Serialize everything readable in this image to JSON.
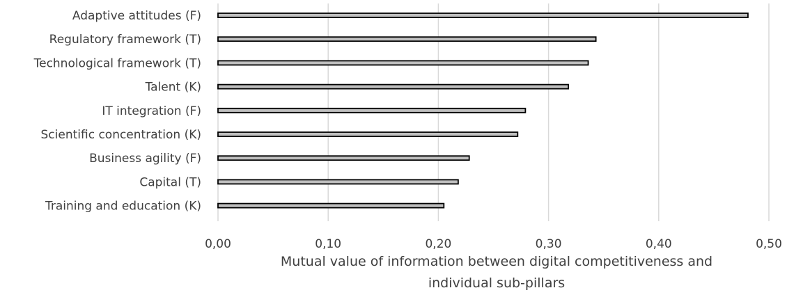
{
  "chart_data": {
    "type": "bar",
    "orientation": "horizontal",
    "categories": [
      "Adaptive attitudes (F)",
      "Regulatory framework (T)",
      "Technological framework (T)",
      "Talent (K)",
      "IT integration (F)",
      "Scientific concentration (K)",
      "Business agility (F)",
      "Capital (T)",
      "Training and education (K)"
    ],
    "values": [
      0.481,
      0.343,
      0.336,
      0.318,
      0.279,
      0.272,
      0.228,
      0.218,
      0.205
    ],
    "xlim": [
      0,
      0.5
    ],
    "xticks": [
      "0,00",
      "0,10",
      "0,20",
      "0,30",
      "0,40",
      "0,50"
    ],
    "xlabel_lines": [
      "Mutual value of information between digital competitiveness and",
      "individual sub-pillars"
    ],
    "grid": true,
    "legend": "none",
    "colors": {
      "bar_fill": "#bfbfbf",
      "bar_stroke": "#000000",
      "grid": "#d9d9d9",
      "text": "#404040"
    }
  }
}
